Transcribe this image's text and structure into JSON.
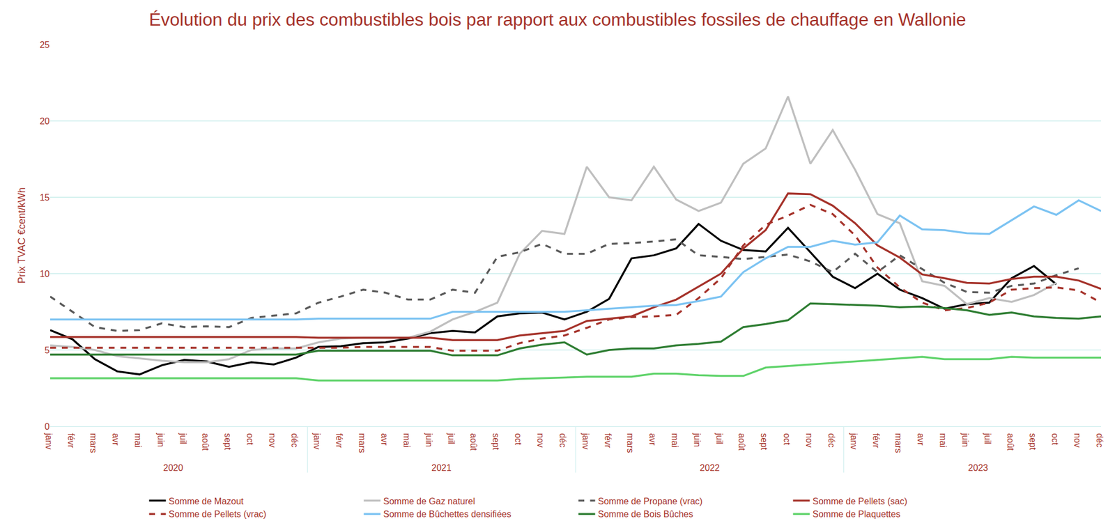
{
  "chart_data": {
    "type": "line",
    "title": "Évolution du prix des combustibles bois par rapport aux combustibles fossiles de chauffage en Wallonie",
    "y_label": "Prix TVAC €cent/kWh",
    "categories": [
      [
        "2020",
        "janv"
      ],
      [
        "2020",
        "févr"
      ],
      [
        "2020",
        "mars"
      ],
      [
        "2020",
        "avr"
      ],
      [
        "2020",
        "mai"
      ],
      [
        "2020",
        "juin"
      ],
      [
        "2020",
        "juil"
      ],
      [
        "2020",
        "août"
      ],
      [
        "2020",
        "sept"
      ],
      [
        "2020",
        "oct"
      ],
      [
        "2020",
        "nov"
      ],
      [
        "2020",
        "déc"
      ],
      [
        "2021",
        "janv"
      ],
      [
        "2021",
        "févr"
      ],
      [
        "2021",
        "mars"
      ],
      [
        "2021",
        "avr"
      ],
      [
        "2021",
        "mai"
      ],
      [
        "2021",
        "juin"
      ],
      [
        "2021",
        "juil"
      ],
      [
        "2021",
        "août"
      ],
      [
        "2021",
        "sept"
      ],
      [
        "2021",
        "oct"
      ],
      [
        "2021",
        "nov"
      ],
      [
        "2021",
        "déc"
      ],
      [
        "2022",
        "janv"
      ],
      [
        "2022",
        "févr"
      ],
      [
        "2022",
        "mars"
      ],
      [
        "2022",
        "avr"
      ],
      [
        "2022",
        "mai"
      ],
      [
        "2022",
        "juin"
      ],
      [
        "2022",
        "juil"
      ],
      [
        "2022",
        "août"
      ],
      [
        "2022",
        "sept"
      ],
      [
        "2022",
        "oct"
      ],
      [
        "2022",
        "nov"
      ],
      [
        "2022",
        "déc"
      ],
      [
        "2023",
        "janv"
      ],
      [
        "2023",
        "févr"
      ],
      [
        "2023",
        "mars"
      ],
      [
        "2023",
        "avr"
      ],
      [
        "2023",
        "mai"
      ],
      [
        "2023",
        "juin"
      ],
      [
        "2023",
        "juil"
      ],
      [
        "2023",
        "août"
      ],
      [
        "2023",
        "sept"
      ],
      [
        "2023",
        "oct"
      ],
      [
        "2023",
        "nov"
      ],
      [
        "2023",
        "déc"
      ]
    ],
    "ylim": [
      0,
      25
    ],
    "yticks": [
      0,
      5,
      10,
      15,
      20,
      25
    ],
    "grid": true,
    "legend": "bottom",
    "series": [
      {
        "name": "Somme de Mazout",
        "color": "#000000",
        "line_style": "solid",
        "values": [
          6.3,
          5.7,
          4.4,
          3.6,
          3.4,
          4.0,
          4.35,
          4.25,
          3.9,
          4.2,
          4.05,
          4.5,
          5.2,
          5.25,
          5.45,
          5.5,
          5.75,
          6.1,
          6.25,
          6.15,
          7.2,
          7.4,
          7.45,
          7.0,
          7.5,
          8.35,
          11.0,
          11.2,
          11.65,
          13.25,
          12.15,
          11.55,
          11.45,
          13.0,
          11.4,
          9.8,
          9.05,
          10.0,
          8.95,
          8.4,
          7.7,
          8.0,
          8.1,
          9.7,
          10.5,
          9.3,
          null,
          null
        ]
      },
      {
        "name": "Somme de Gaz naturel",
        "color": "#bfbfbf",
        "line_style": "solid",
        "values": [
          5.3,
          5.2,
          5.0,
          4.6,
          4.45,
          4.3,
          4.2,
          4.2,
          4.4,
          5.0,
          5.1,
          5.1,
          5.5,
          5.75,
          5.8,
          5.8,
          5.8,
          6.2,
          7.0,
          7.5,
          8.1,
          11.3,
          12.8,
          12.6,
          17.0,
          15.0,
          14.8,
          17.0,
          14.85,
          14.1,
          14.65,
          17.2,
          18.2,
          21.6,
          17.2,
          19.4,
          16.8,
          13.9,
          13.3,
          9.5,
          9.2,
          8.0,
          8.4,
          8.15,
          8.6,
          9.4,
          null,
          null
        ]
      },
      {
        "name": "Somme de Propane (vrac)",
        "color": "#595959",
        "line_style": "dash",
        "values": [
          8.5,
          7.5,
          6.5,
          6.25,
          6.3,
          6.75,
          6.5,
          6.55,
          6.5,
          7.1,
          7.25,
          7.4,
          8.1,
          8.5,
          8.95,
          8.75,
          8.3,
          8.3,
          8.95,
          8.75,
          11.1,
          11.4,
          11.95,
          11.3,
          11.3,
          11.95,
          12.0,
          12.1,
          12.25,
          11.2,
          11.1,
          10.95,
          11.1,
          11.25,
          10.8,
          10.1,
          11.3,
          10.1,
          11.2,
          10.3,
          9.4,
          8.8,
          8.75,
          9.2,
          9.35,
          9.9,
          10.35,
          null
        ]
      },
      {
        "name": "Somme de Pellets (sac)",
        "color": "#a5322a",
        "line_style": "solid",
        "values": [
          5.85,
          5.85,
          5.85,
          5.85,
          5.85,
          5.85,
          5.85,
          5.85,
          5.85,
          5.85,
          5.85,
          5.85,
          5.8,
          5.8,
          5.8,
          5.8,
          5.8,
          5.8,
          5.65,
          5.65,
          5.65,
          5.95,
          6.1,
          6.25,
          6.9,
          7.05,
          7.2,
          7.8,
          8.3,
          9.15,
          10.0,
          11.65,
          12.85,
          15.25,
          15.2,
          14.45,
          13.3,
          11.85,
          11.05,
          9.95,
          9.7,
          9.4,
          9.35,
          9.65,
          9.8,
          9.8,
          9.55,
          9.0
        ]
      },
      {
        "name": "Somme de Pellets (vrac)",
        "color": "#a5322a",
        "line_style": "dash",
        "values": [
          5.15,
          5.15,
          5.15,
          5.15,
          5.15,
          5.15,
          5.15,
          5.15,
          5.15,
          5.15,
          5.15,
          5.15,
          5.15,
          5.15,
          5.2,
          5.2,
          5.2,
          5.2,
          4.95,
          4.95,
          4.95,
          5.45,
          5.75,
          5.95,
          6.45,
          7.0,
          7.15,
          7.2,
          7.3,
          8.4,
          9.7,
          11.85,
          13.2,
          13.8,
          14.5,
          13.9,
          12.5,
          10.4,
          9.1,
          8.1,
          7.6,
          7.75,
          8.1,
          8.95,
          9.05,
          9.1,
          8.9,
          8.1
        ]
      },
      {
        "name": "Somme de Bûchettes densifiées",
        "color": "#7cc3f2",
        "line_style": "solid",
        "values": [
          7.0,
          7.0,
          7.0,
          7.0,
          7.0,
          7.0,
          7.0,
          7.0,
          7.0,
          7.0,
          7.0,
          7.0,
          7.05,
          7.05,
          7.05,
          7.05,
          7.05,
          7.05,
          7.5,
          7.5,
          7.5,
          7.5,
          7.5,
          7.5,
          7.6,
          7.7,
          7.8,
          7.9,
          7.95,
          8.2,
          8.5,
          10.1,
          11.0,
          11.75,
          11.75,
          12.15,
          11.9,
          12.05,
          13.8,
          12.9,
          12.85,
          12.65,
          12.6,
          13.5,
          14.4,
          13.85,
          14.8,
          14.1
        ]
      },
      {
        "name": "Somme de Bois Bûches",
        "color": "#2e7d32",
        "line_style": "solid",
        "values": [
          4.7,
          4.7,
          4.7,
          4.7,
          4.7,
          4.7,
          4.7,
          4.7,
          4.7,
          4.7,
          4.7,
          4.7,
          4.95,
          4.95,
          4.95,
          4.95,
          4.95,
          4.95,
          4.65,
          4.65,
          4.65,
          5.1,
          5.35,
          5.5,
          4.7,
          5.0,
          5.1,
          5.1,
          5.3,
          5.4,
          5.55,
          6.5,
          6.7,
          6.95,
          8.05,
          8.0,
          7.95,
          7.9,
          7.8,
          7.85,
          7.75,
          7.6,
          7.3,
          7.45,
          7.2,
          7.1,
          7.05,
          7.2
        ]
      },
      {
        "name": "Somme de Plaquettes",
        "color": "#5fd36a",
        "line_style": "solid",
        "values": [
          3.15,
          3.15,
          3.15,
          3.15,
          3.15,
          3.15,
          3.15,
          3.15,
          3.15,
          3.15,
          3.15,
          3.15,
          3.0,
          3.0,
          3.0,
          3.0,
          3.0,
          3.0,
          3.0,
          3.0,
          3.0,
          3.1,
          3.15,
          3.2,
          3.25,
          3.25,
          3.25,
          3.45,
          3.45,
          3.35,
          3.3,
          3.3,
          3.85,
          3.95,
          4.05,
          4.15,
          4.25,
          4.35,
          4.45,
          4.55,
          4.4,
          4.4,
          4.4,
          4.55,
          4.5,
          4.5,
          4.5,
          4.5
        ]
      }
    ]
  }
}
